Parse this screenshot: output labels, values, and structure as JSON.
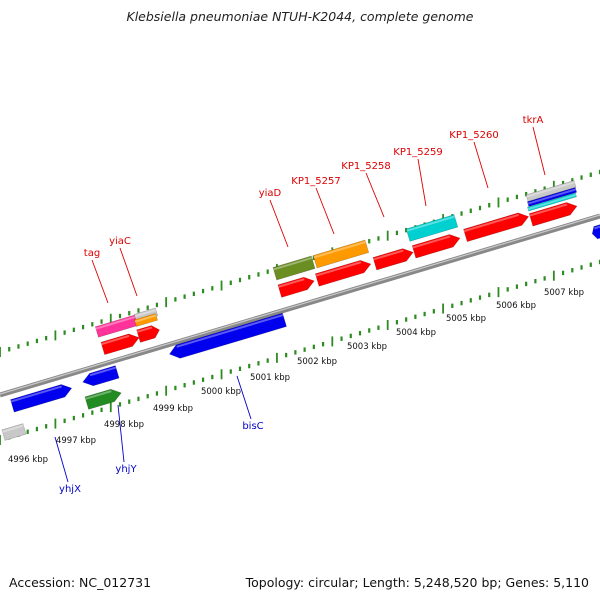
{
  "title": "Klebsiella pneumoniae NTUH-K2044, complete genome",
  "footer": {
    "accession": "Accession: NC_012731",
    "topology": "Topology: circular; Length: 5,248,520 bp; Genes: 5,110"
  },
  "colors": {
    "axis": "#8a8a8a",
    "tick": "#2e8b22",
    "label_top": "#dd0000",
    "label_bottom": "#0000cc",
    "red": "#ff0000",
    "orange": "#ff9900",
    "olive": "#6b8e23",
    "cyan": "#00d0d0",
    "blue": "#0000ee",
    "pink": "#ff3399",
    "green": "#228b22",
    "gray": "#c8c8c8"
  },
  "scale_labels": [
    "4996 kbp",
    "4997 kbp",
    "4998 kbp",
    "4999 kbp",
    "5000 kbp",
    "5001 kbp",
    "5002 kbp",
    "5003 kbp",
    "5004 kbp",
    "5005 kbp",
    "5006 kbp",
    "5007 kbp"
  ],
  "gene_labels_top": [
    "tag",
    "yiaC",
    "yiaD",
    "KP1_5257",
    "KP1_5258",
    "KP1_5259",
    "KP1_5260",
    "tkrA"
  ],
  "gene_labels_bottom": [
    "yhjX",
    "yhjY",
    "bisC"
  ]
}
